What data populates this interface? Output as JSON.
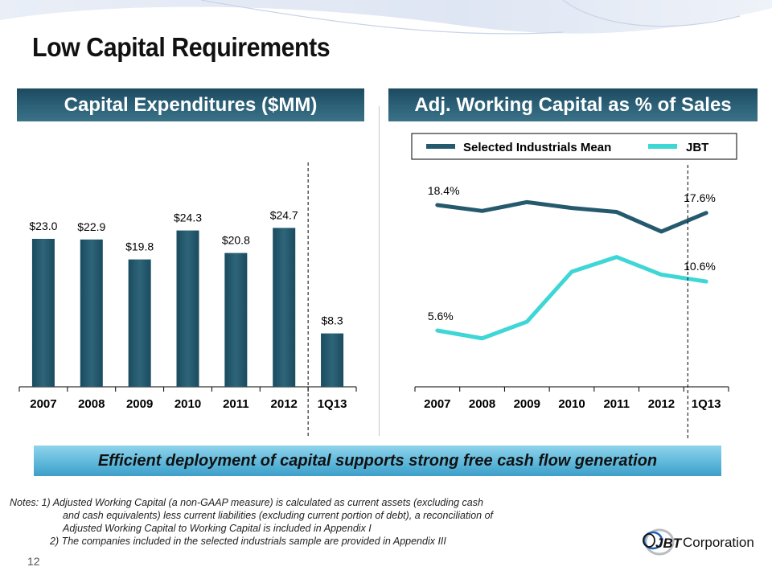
{
  "slide": {
    "title": "Low Capital Requirements",
    "page_number": "12",
    "banner": "Efficient deployment of capital supports strong free cash flow generation",
    "notes": [
      "Notes: 1) Adjusted Working Capital (a non-GAAP measure) is calculated as current  assets (excluding cash",
      "and cash equivalents) less current liabilities (excluding current portion of debt), a reconciliation of",
      "Adjusted Working Capital to Working Capital is included in Appendix I",
      "2) The companies included in the selected industrials sample are provided in Appendix III"
    ],
    "logo_text": "JBT Corporation",
    "logo_mark": "JBT",
    "logo_word": "Corporation"
  },
  "colors": {
    "bar": "#1f5468",
    "mean_line": "#255a6e",
    "jbt_line": "#3fd6d6",
    "header": "#2b6076"
  },
  "chart_data": [
    {
      "type": "bar",
      "title": "Capital Expenditures ($MM)",
      "categories": [
        "2007",
        "2008",
        "2009",
        "2010",
        "2011",
        "2012",
        "1Q13"
      ],
      "values": [
        23.0,
        22.9,
        19.8,
        24.3,
        20.8,
        24.7,
        8.3
      ],
      "labels": [
        "$23.0",
        "$22.9",
        "$19.8",
        "$24.3",
        "$20.8",
        "$24.7",
        "$8.3"
      ],
      "xlabel": "",
      "ylabel": "",
      "ylim": [
        0,
        30
      ],
      "grid": false,
      "separator_before": "1Q13"
    },
    {
      "type": "line",
      "title": "Adj. Working Capital as % of Sales",
      "categories": [
        "2007",
        "2008",
        "2009",
        "2010",
        "2011",
        "2012",
        "1Q13"
      ],
      "series": [
        {
          "name": "Selected Industrials Mean",
          "values": [
            18.4,
            17.8,
            18.7,
            18.1,
            17.7,
            15.7,
            17.6
          ]
        },
        {
          "name": "JBT",
          "values": [
            5.6,
            4.8,
            6.5,
            11.6,
            13.1,
            11.3,
            10.6
          ]
        }
      ],
      "annotations": [
        {
          "series": "Selected Industrials Mean",
          "category": "2007",
          "text": "18.4%"
        },
        {
          "series": "Selected Industrials Mean",
          "category": "1Q13",
          "text": "17.6%"
        },
        {
          "series": "JBT",
          "category": "2007",
          "text": "5.6%"
        },
        {
          "series": "JBT",
          "category": "1Q13",
          "text": "10.6%"
        }
      ],
      "xlabel": "",
      "ylabel": "",
      "ylim": [
        0,
        25
      ],
      "grid": false,
      "legend_position": "top",
      "separator_before": "1Q13"
    }
  ]
}
